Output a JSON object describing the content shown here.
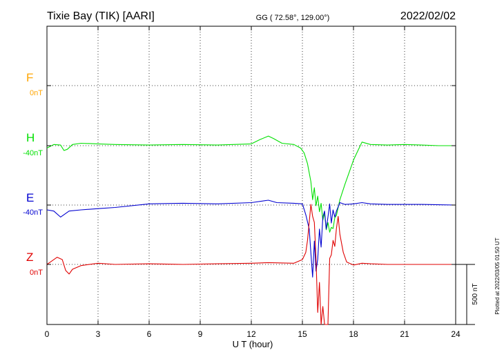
{
  "header": {
    "station": "Tixie Bay (TIK)  [AARI]",
    "coords": "GG ( 72.58°, 129.00°)",
    "date": "2022/02/02"
  },
  "footer": {
    "plotted": "Plotted at 2022/03/05 01:50 UT"
  },
  "chart_data": {
    "type": "line",
    "xlabel": "U T (hour)",
    "xlim": [
      0,
      24
    ],
    "x_ticks": [
      "0",
      "3",
      "6",
      "9",
      "12",
      "15",
      "18",
      "21",
      "24"
    ],
    "grid": true,
    "scale_bar_label": "500 nT",
    "series": [
      {
        "name": "F",
        "baseline_label": "0nT",
        "color": "#FFA500",
        "x": [],
        "y": []
      },
      {
        "name": "H",
        "baseline_label": "-40nT",
        "color": "#00E000",
        "x": [
          0,
          0.4,
          0.8,
          1.0,
          1.2,
          1.5,
          2.0,
          3.0,
          4.0,
          6.0,
          8.0,
          10.0,
          12.0,
          12.5,
          13.0,
          13.3,
          13.8,
          14.5,
          14.9,
          15.1,
          15.3,
          15.5,
          15.6,
          15.7,
          15.8,
          15.9,
          16.0,
          16.1,
          16.2,
          16.3,
          16.4,
          16.5,
          16.6,
          16.7,
          16.8,
          16.9,
          17.0,
          17.2,
          17.5,
          17.8,
          18.0,
          18.2,
          18.5,
          19.0,
          20.0,
          21.0,
          22.0,
          23.0,
          24.0
        ],
        "y": [
          -20,
          10,
          5,
          -40,
          -30,
          10,
          20,
          15,
          10,
          5,
          10,
          5,
          15,
          50,
          80,
          60,
          20,
          10,
          -20,
          -60,
          -150,
          -300,
          -450,
          -350,
          -500,
          -420,
          -550,
          -480,
          -620,
          -560,
          -700,
          -640,
          -720,
          -680,
          -690,
          -600,
          -580,
          -450,
          -320,
          -200,
          -120,
          -60,
          30,
          10,
          5,
          10,
          5,
          0,
          0
        ]
      },
      {
        "name": "E",
        "baseline_label": "-40nT",
        "color": "#0000D0",
        "x": [
          0,
          0.4,
          0.8,
          1.0,
          1.3,
          2.0,
          3.0,
          4.0,
          6.0,
          8.0,
          10.0,
          12.0,
          13.0,
          13.5,
          14.5,
          15.0,
          15.2,
          15.4,
          15.5,
          15.6,
          15.7,
          15.8,
          15.9,
          16.0,
          16.1,
          16.2,
          16.3,
          16.4,
          16.5,
          16.6,
          16.7,
          16.8,
          16.9,
          17.0,
          17.2,
          17.5,
          18.0,
          18.5,
          19.0,
          20.0,
          22.0,
          24.0
        ],
        "y": [
          -40,
          -50,
          -100,
          -80,
          -50,
          -40,
          -30,
          -20,
          10,
          15,
          10,
          20,
          40,
          20,
          15,
          10,
          -80,
          -200,
          -400,
          -600,
          -300,
          -550,
          -450,
          -200,
          -350,
          -100,
          -50,
          -200,
          -100,
          10,
          -150,
          -40,
          -100,
          -50,
          20,
          5,
          10,
          20,
          10,
          5,
          5,
          0
        ]
      },
      {
        "name": "Z",
        "baseline_label": "0nT",
        "color": "#E00000",
        "x": [
          0,
          0.3,
          0.6,
          0.9,
          1.1,
          1.3,
          1.5,
          2.0,
          3.0,
          4.0,
          6.0,
          8.0,
          10.0,
          12.0,
          13.0,
          14.5,
          15.0,
          15.2,
          15.3,
          15.5,
          15.6,
          15.7,
          15.8,
          15.9,
          16.0,
          16.1,
          16.2,
          16.3,
          16.4,
          16.5,
          16.6,
          16.7,
          16.8,
          16.9,
          17.0,
          17.1,
          17.2,
          17.4,
          17.6,
          18.0,
          18.5,
          19.0,
          20.0,
          22.0,
          24.0
        ],
        "y": [
          0,
          30,
          60,
          40,
          -50,
          -80,
          -40,
          -10,
          10,
          0,
          5,
          0,
          5,
          10,
          15,
          10,
          40,
          100,
          200,
          500,
          400,
          350,
          50,
          -400,
          -150,
          -700,
          -350,
          -850,
          -600,
          -500,
          50,
          80,
          200,
          150,
          300,
          400,
          250,
          100,
          20,
          -5,
          10,
          5,
          0,
          0,
          0
        ]
      }
    ]
  }
}
